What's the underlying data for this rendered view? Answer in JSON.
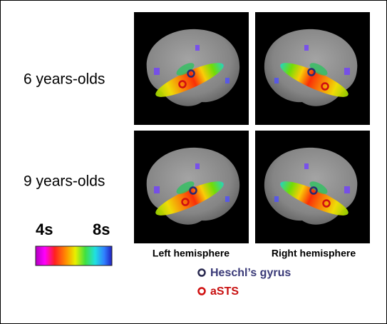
{
  "rows": [
    {
      "label": "6 years-olds"
    },
    {
      "label": "9 years-olds"
    }
  ],
  "columns": [
    {
      "label": "Left hemisphere"
    },
    {
      "label": "Right hemisphere"
    }
  ],
  "colorbar": {
    "min_label": "4s",
    "max_label": "8s"
  },
  "legend": [
    {
      "label": "Heschl’s gyrus"
    },
    {
      "label": "aSTS"
    }
  ]
}
